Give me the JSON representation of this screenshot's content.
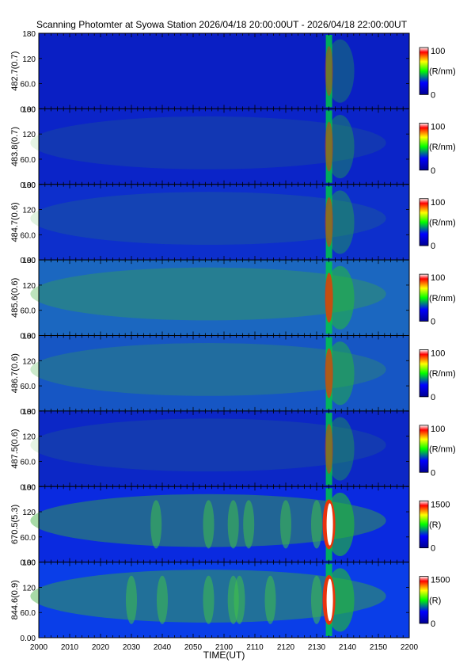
{
  "chart_data": {
    "type": "heatmap",
    "title": "Scanning Photomter at Syowa Station 2026/04/18 20:00:00UT - 2026/04/18 22:00:00UT",
    "xlabel": "TIME(UT)",
    "x_ticks": [
      "2000",
      "2010",
      "2020",
      "2030",
      "2040",
      "2050",
      "2100",
      "2110",
      "2120",
      "2130",
      "2140",
      "2150",
      "2200"
    ],
    "y_ticks": [
      "0.00",
      "60.0",
      "120",
      "180"
    ],
    "ylim": [
      0,
      180
    ],
    "colormap": [
      "#000090",
      "#0000ff",
      "#00ff00",
      "#ffff00",
      "#ff0000",
      "#ffffff"
    ],
    "panels": [
      {
        "ylabel": "482.7(0.7)",
        "unit": "(R/nm)",
        "cmax": "100",
        "cmin": "0",
        "bg": "#0a1fc4",
        "glow": 0.18,
        "bands": []
      },
      {
        "ylabel": "483.8(0.7)",
        "unit": "(R/nm)",
        "cmax": "100",
        "cmin": "0",
        "bg": "#0b24c8",
        "glow": 0.3,
        "bands": []
      },
      {
        "ylabel": "484.7(0.6)",
        "unit": "(R/nm)",
        "cmax": "100",
        "cmin": "0",
        "bg": "#0d2fcc",
        "glow": 0.35,
        "bands": []
      },
      {
        "ylabel": "485.6(0.6)",
        "unit": "(R/nm)",
        "cmax": "100",
        "cmin": "0",
        "bg": "#1b67c0",
        "glow": 0.75,
        "bands": []
      },
      {
        "ylabel": "486.7(0.6)",
        "unit": "(R/nm)",
        "cmax": "100",
        "cmin": "0",
        "bg": "#1656c4",
        "glow": 0.6,
        "bands": []
      },
      {
        "ylabel": "487.5(0.6)",
        "unit": "(R/nm)",
        "cmax": "100",
        "cmin": "0",
        "bg": "#0c27c6",
        "glow": 0.3,
        "bands": []
      },
      {
        "ylabel": "670.5(5.3)",
        "unit": "(R)",
        "cmax": "1500",
        "cmin": "0",
        "bg": "#0a2ae0",
        "glow": 1.0,
        "bands": [
          2038,
          2055,
          2063,
          2068,
          2080,
          2090
        ]
      },
      {
        "ylabel": "844.6(0.9)",
        "unit": "(R)",
        "cmax": "1500",
        "cmin": "0",
        "bg": "#0a3ee8",
        "glow": 1.0,
        "bands": [
          2030,
          2040,
          2055,
          2063,
          2075,
          2090,
          2105
        ]
      }
    ]
  }
}
